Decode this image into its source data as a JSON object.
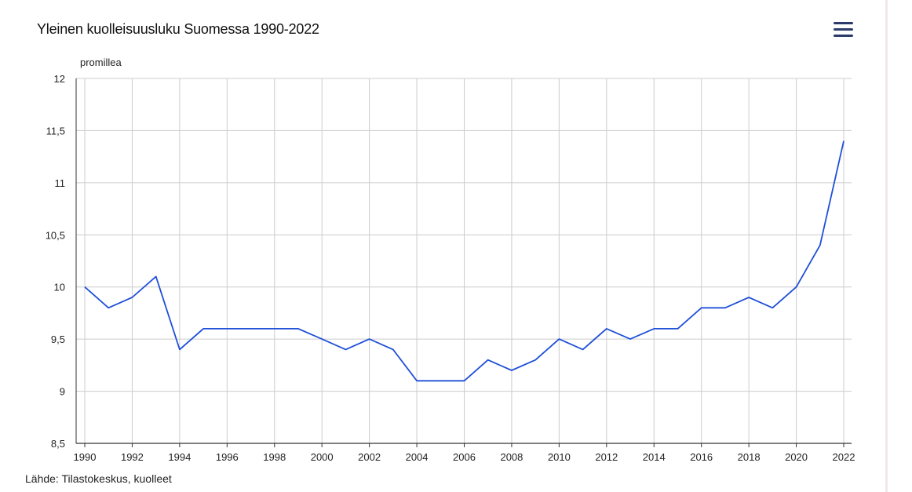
{
  "header": {
    "title": "Yleinen kuolleisuusluku Suomessa 1990-2022",
    "menu_icon": "hamburger-menu-icon"
  },
  "source": "Lähde: Tilastokeskus, kuolleet",
  "colors": {
    "line": "#1f4fd8",
    "grid": "#cccccc",
    "axis": "#333333",
    "menu": "#2c3b6b"
  },
  "chart_data": {
    "type": "line",
    "title": "Yleinen kuolleisuusluku Suomessa 1990-2022",
    "xlabel": "",
    "ylabel": "promillea",
    "xlim": [
      1990,
      2022
    ],
    "ylim": [
      8.5,
      12
    ],
    "grid": true,
    "x_tick_labels": [
      "1990",
      "1992",
      "1994",
      "1996",
      "1998",
      "2000",
      "2002",
      "2004",
      "2006",
      "2008",
      "2010",
      "2012",
      "2014",
      "2016",
      "2018",
      "2020",
      "2022"
    ],
    "y_ticks": [
      8.5,
      9,
      9.5,
      10,
      10.5,
      11,
      11.5,
      12
    ],
    "y_tick_labels": [
      "8,5",
      "9",
      "9,5",
      "10",
      "10,5",
      "11",
      "11,5",
      "12"
    ],
    "x": [
      1990,
      1991,
      1992,
      1993,
      1994,
      1995,
      1996,
      1997,
      1998,
      1999,
      2000,
      2001,
      2002,
      2003,
      2004,
      2005,
      2006,
      2007,
      2008,
      2009,
      2010,
      2011,
      2012,
      2013,
      2014,
      2015,
      2016,
      2017,
      2018,
      2019,
      2020,
      2021,
      2022
    ],
    "series": [
      {
        "values": [
          10.0,
          9.8,
          9.9,
          10.1,
          9.4,
          9.6,
          9.6,
          9.6,
          9.6,
          9.6,
          9.5,
          9.4,
          9.5,
          9.4,
          9.1,
          9.1,
          9.1,
          9.3,
          9.2,
          9.3,
          9.5,
          9.4,
          9.6,
          9.5,
          9.6,
          9.6,
          9.8,
          9.8,
          9.9,
          9.8,
          10.0,
          10.4,
          11.4
        ]
      }
    ]
  }
}
